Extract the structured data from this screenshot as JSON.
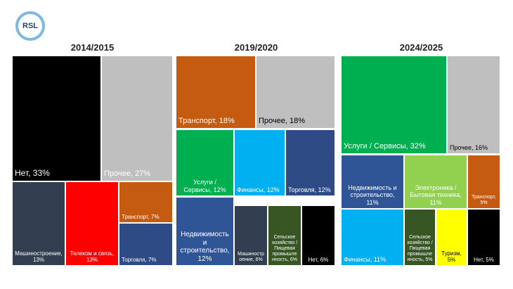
{
  "logo": "RSL",
  "chart_data": [
    {
      "type": "treemap",
      "title": "2014/2015",
      "labels": [
        "Нет, 33%",
        "Прочее, 27%",
        "Машиностроение,\n13%",
        "Телеком и связь,\n13%",
        "Транспорт, 7%",
        "Торговля, 7%"
      ],
      "values": [
        33,
        27,
        13,
        13,
        7,
        7
      ],
      "colors": [
        "#000000",
        "#bfbfbf",
        "#333f50",
        "#ff0000",
        "#c55a11",
        "#2f4b86"
      ]
    },
    {
      "type": "treemap",
      "title": "2019/2020",
      "labels": [
        "Транспорт, 18%",
        "Прочее, 18%",
        "Услуги /\nСервисы, 12%",
        "Финансы, 12%",
        "Торговля, 12%",
        "Недвижимость и\nстроительство,\n12%",
        "Машиностр\nоение, 6%",
        "Сельское\nхозяйство /\nПищевая\nпромышле\nнность, 6%",
        "Нет, 6%"
      ],
      "values": [
        18,
        18,
        12,
        12,
        12,
        12,
        6,
        6,
        6
      ],
      "colors": [
        "#c55a11",
        "#bfbfbf",
        "#00b050",
        "#00b0f0",
        "#2f4b86",
        "#2f5597",
        "#333f50",
        "#375623",
        "#000000"
      ]
    },
    {
      "type": "treemap",
      "title": "2024/2025",
      "labels": [
        "Услуги / Сервисы, 32%",
        "Прочее, 16%",
        "Недвижимость и\nстроительство,\n11%",
        "Электроника /\nБытовая техника,\n11%",
        "Транспорт,\n5%",
        "Финансы, 11%",
        "Сельское\nхозяйство /\nПищевая\nпромышле\nнность, 5%",
        "Туризм,\n5%",
        "Нет, 5%"
      ],
      "values": [
        32,
        16,
        11,
        11,
        5,
        11,
        5,
        5,
        5
      ],
      "colors": [
        "#00b050",
        "#bfbfbf",
        "#2f5597",
        "#92d050",
        "#c55a11",
        "#00b0f0",
        "#375623",
        "#ffff00",
        "#000000"
      ]
    }
  ]
}
